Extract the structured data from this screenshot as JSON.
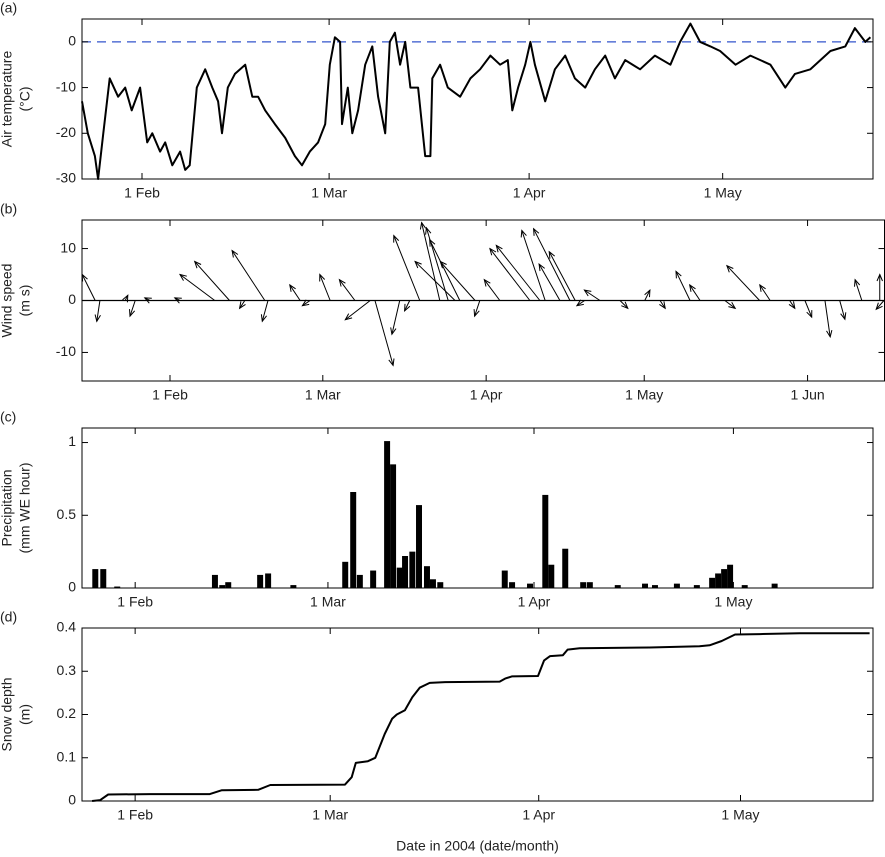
{
  "chart_data": [
    {
      "type": "line",
      "panel_label": "(a)",
      "ylabel": [
        "Air temperature",
        "(°C)"
      ],
      "color": "#000000",
      "reference_line": 0,
      "reference_color": "#3355cc",
      "reference_dashed": true,
      "xlim": [
        22.7,
        145.3
      ],
      "ylim": [
        -30,
        5
      ],
      "xticks": [
        {
          "value": 32,
          "label": "1 Feb"
        },
        {
          "value": 61,
          "label": "1 Mar"
        },
        {
          "value": 92,
          "label": "1 Apr"
        },
        {
          "value": 122,
          "label": "1 May"
        }
      ],
      "yticks": [
        -30,
        -20,
        -10,
        0
      ],
      "x": [
        22.7,
        23.6,
        24.7,
        25.2,
        26.0,
        27.0,
        28.3,
        29.4,
        30.4,
        31.7,
        32.8,
        33.6,
        34.8,
        35.6,
        36.7,
        37.9,
        38.7,
        39.4,
        40.5,
        41.8,
        42.9,
        43.8,
        44.4,
        45.3,
        46.4,
        48.0,
        49.1,
        50.0,
        51.1,
        52.6,
        54.2,
        55.7,
        56.8,
        58.0,
        59.3,
        60.4,
        61.1,
        61.9,
        62.7,
        63.0,
        63.9,
        64.6,
        65.5,
        66.6,
        67.7,
        68.6,
        69.7,
        70.4,
        71.2,
        72.0,
        72.8,
        73.6,
        74.8,
        75.9,
        76.7,
        77.0,
        78.2,
        79.4,
        81.3,
        82.9,
        84.4,
        86.0,
        87.5,
        88.7,
        89.4,
        90.3,
        91.4,
        92.2,
        92.9,
        94.5,
        96.0,
        97.6,
        99.1,
        100.7,
        102.2,
        103.8,
        105.3,
        106.9,
        109.2,
        111.5,
        113.9,
        115.4,
        117.0,
        118.5,
        120.1,
        121.6,
        124.0,
        126.3,
        129.4,
        131.7,
        133.2,
        135.6,
        138.7,
        141.0,
        142.5,
        144.1,
        144.9
      ],
      "values": [
        -13,
        -20,
        -25,
        -30,
        -20,
        -8,
        -12,
        -10,
        -15,
        -10,
        -22,
        -20,
        -24,
        -22,
        -27,
        -24,
        -28,
        -27,
        -10,
        -6,
        -10,
        -13,
        -20,
        -10,
        -7,
        -5,
        -12,
        -12,
        -15,
        -18,
        -21,
        -25,
        -27,
        -24,
        -22,
        -18,
        -5,
        1,
        0,
        -18,
        -10,
        -20,
        -15,
        -5,
        -1,
        -12,
        -20,
        0,
        2,
        -5,
        0,
        -10,
        -10,
        -25,
        -25,
        -8,
        -5,
        -10,
        -12,
        -8,
        -6,
        -3,
        -5,
        -4,
        -15,
        -10,
        -5,
        0,
        -5,
        -13,
        -6,
        -3,
        -8,
        -10,
        -6,
        -3,
        -8,
        -4,
        -6,
        -3,
        -5,
        0,
        4,
        0,
        -1,
        -2,
        -5,
        -3,
        -5,
        -10,
        -7,
        -6,
        -2,
        -1,
        3,
        0,
        1
      ]
    },
    {
      "type": "vector",
      "panel_label": "(b)",
      "ylabel": [
        "Wind speed",
        "(m s)"
      ],
      "color": "#000000",
      "reference_line": 0,
      "reference_color": "#000000",
      "reference_dashed": false,
      "xlim": [
        15.3,
        167.6
      ],
      "ylim": [
        -15.5,
        15.5
      ],
      "xticks": [
        {
          "value": 32,
          "label": "1 Feb"
        },
        {
          "value": 61,
          "label": "1 Mar"
        },
        {
          "value": 92,
          "label": "1 Apr"
        },
        {
          "value": 122,
          "label": "1 May"
        },
        {
          "value": 153,
          "label": "1 Jun"
        }
      ],
      "yticks": [
        -10,
        0,
        10
      ],
      "x": [
        17.8,
        18.7,
        23.5,
        25.4,
        28.2,
        33.9,
        40.5,
        43.3,
        46.2,
        50.0,
        50.6,
        56.7,
        58.6,
        62.4,
        67.1,
        70.0,
        70.9,
        75.6,
        77.5,
        79.4,
        83.2,
        84.8,
        86.1,
        87.0,
        89.9,
        90.8,
        94.6,
        100.3,
        102.2,
        103.2,
        106.0,
        107.9,
        108.9,
        110.7,
        113.6,
        117.4,
        122.1,
        125.0,
        130.7,
        132.6,
        137.3,
        143.9,
        145.9,
        149.6,
        152.5,
        156.3,
        159.1,
        163.3,
        166.7,
        167.5
      ],
      "u": [
        -2.5,
        -0.6,
        0.5,
        -1,
        -1,
        -1,
        -6.7,
        -6.7,
        -1,
        -6.3,
        -1.1,
        -2,
        -1.5,
        -2,
        -3,
        -4.8,
        3.5,
        -1.5,
        -1,
        -5,
        -3.5,
        -4.2,
        -7.7,
        -5.8,
        -6.7,
        -1,
        -3,
        -7.7,
        -8.4,
        -4.5,
        -4,
        -7,
        -5,
        -1.5,
        -3,
        1.5,
        1,
        1,
        -2.7,
        -2,
        2,
        -6.3,
        -2,
        1,
        1.3,
        1,
        1,
        -1.3,
        0,
        -1.5
      ],
      "v": [
        5,
        -4,
        1,
        -3,
        0.5,
        0.5,
        5,
        7.5,
        -1.5,
        9.6,
        -4,
        3,
        -1,
        5,
        4,
        -3.7,
        -12.5,
        -6.5,
        -2,
        12.5,
        15,
        14,
        7.5,
        11.7,
        7.5,
        -3,
        4,
        10,
        10.6,
        13.5,
        7,
        13.8,
        9.4,
        -1,
        2,
        -1.5,
        2,
        -1.5,
        5.6,
        3,
        -1.5,
        6.7,
        3,
        -1.5,
        -3.2,
        -7,
        -3.6,
        4,
        5,
        -1.7
      ]
    },
    {
      "type": "bar",
      "panel_label": "(c)",
      "ylabel": [
        "Precipitation",
        "(mm WE hour)"
      ],
      "color": "#000000",
      "xlim": [
        24.0,
        143.0
      ],
      "ylim": [
        0,
        1.1
      ],
      "xticks": [
        {
          "value": 32,
          "label": "1 Feb"
        },
        {
          "value": 61,
          "label": "1 Mar"
        },
        {
          "value": 92,
          "label": "1 Apr"
        },
        {
          "value": 122,
          "label": "1 May"
        }
      ],
      "yticks": [
        0,
        0.5,
        1
      ],
      "x": [
        26.0,
        27.2,
        29.3,
        44.0,
        45.1,
        46.0,
        50.8,
        52.0,
        55.8,
        63.6,
        64.8,
        65.8,
        67.8,
        69.9,
        70.8,
        71.8,
        72.6,
        73.7,
        74.7,
        75.9,
        76.8,
        77.9,
        87.6,
        88.7,
        91.4,
        93.7,
        94.6,
        96.7,
        99.4,
        100.4,
        104.6,
        108.7,
        110.2,
        113.5,
        116.5,
        118.8,
        119.7,
        120.6,
        121.5,
        123.7,
        128.2
      ],
      "values": [
        0.13,
        0.13,
        0.01,
        0.09,
        0.02,
        0.04,
        0.09,
        0.1,
        0.02,
        0.18,
        0.66,
        0.09,
        0.12,
        1.01,
        0.85,
        0.14,
        0.22,
        0.25,
        0.57,
        0.15,
        0.06,
        0.04,
        0.12,
        0.04,
        0.03,
        0.64,
        0.16,
        0.27,
        0.04,
        0.04,
        0.02,
        0.03,
        0.02,
        0.03,
        0.02,
        0.07,
        0.1,
        0.13,
        0.16,
        0.02,
        0.03
      ]
    },
    {
      "type": "line",
      "panel_label": "(d)",
      "ylabel": [
        "Snow depth",
        "(m)"
      ],
      "color": "#000000",
      "xlabel": "Date in 2004 (date/month)",
      "xlim": [
        24.1,
        141.7
      ],
      "ylim": [
        0,
        0.4
      ],
      "xticks": [
        {
          "value": 32,
          "label": "1 Feb"
        },
        {
          "value": 61,
          "label": "1 Mar"
        },
        {
          "value": 92,
          "label": "1 Apr"
        },
        {
          "value": 122,
          "label": "1 May"
        }
      ],
      "yticks": [
        0,
        0.1,
        0.2,
        0.3,
        0.4
      ],
      "x": [
        25.6,
        26.8,
        28.0,
        34.2,
        43.1,
        44.9,
        50.3,
        52.1,
        63.2,
        64.2,
        64.8,
        66.6,
        67.7,
        69.1,
        70.2,
        70.9,
        72.1,
        73.2,
        74.3,
        75.8,
        78.1,
        86.2,
        87.0,
        88.0,
        91.9,
        92.8,
        93.7,
        95.6,
        96.3,
        98.1,
        108.5,
        115.9,
        117.4,
        119.2,
        121.2,
        124.9,
        130.8,
        141.2
      ],
      "values": [
        0,
        0.002,
        0.015,
        0.016,
        0.016,
        0.025,
        0.026,
        0.037,
        0.038,
        0.055,
        0.088,
        0.092,
        0.1,
        0.155,
        0.19,
        0.2,
        0.21,
        0.24,
        0.262,
        0.273,
        0.275,
        0.276,
        0.283,
        0.288,
        0.289,
        0.325,
        0.335,
        0.337,
        0.35,
        0.353,
        0.355,
        0.358,
        0.36,
        0.37,
        0.385,
        0.386,
        0.388,
        0.388
      ]
    }
  ]
}
